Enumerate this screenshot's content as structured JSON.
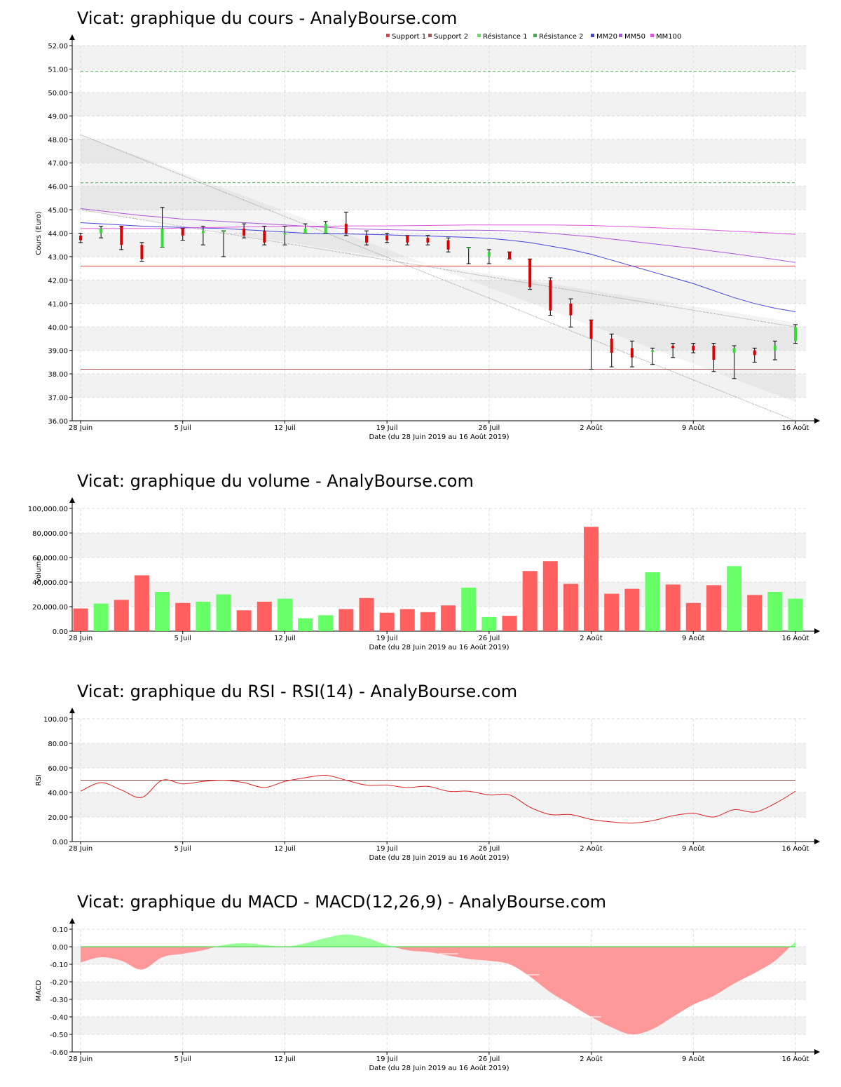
{
  "chart_data": [
    {
      "type": "candlestick",
      "title": "Vicat: graphique du cours - AnalyBourse.com",
      "ylabel": "Cours (Euro)",
      "xlabel": "Date (du 28 Juin 2019 au 16 Août 2019)",
      "ylim": [
        36,
        52
      ],
      "yticks": [
        "36.00",
        "37.00",
        "38.00",
        "39.00",
        "40.00",
        "41.00",
        "42.00",
        "43.00",
        "44.00",
        "45.00",
        "46.00",
        "47.00",
        "48.00",
        "49.00",
        "50.00",
        "51.00",
        "52.00"
      ],
      "xticks": [
        {
          "i": 0,
          "label": "28 Juin"
        },
        {
          "i": 5,
          "label": "5 Juil"
        },
        {
          "i": 10,
          "label": "12 Juil"
        },
        {
          "i": 15,
          "label": "19 Juil"
        },
        {
          "i": 20,
          "label": "26 Juil"
        },
        {
          "i": 25,
          "label": "2 Août"
        },
        {
          "i": 30,
          "label": "9 Août"
        },
        {
          "i": 35,
          "label": "16 Août"
        }
      ],
      "legend": [
        {
          "label": "Support 1",
          "color": "#dd4444"
        },
        {
          "label": "Support 2",
          "color": "#aa5555"
        },
        {
          "label": "Résistance 1",
          "color": "#66dd66"
        },
        {
          "label": "Résistance 2",
          "color": "#44aa44"
        },
        {
          "label": "MM20",
          "color": "#4444dd"
        },
        {
          "label": "MM50",
          "color": "#aa55dd"
        },
        {
          "label": "MM100",
          "color": "#dd55dd"
        }
      ],
      "support_1": 42.6,
      "support_2": 38.2,
      "resistance_1": 46.15,
      "resistance_2": 50.9,
      "ohlc": [
        {
          "o": 43.9,
          "h": 44.0,
          "l": 43.6,
          "c": 43.7
        },
        {
          "o": 44.0,
          "h": 44.3,
          "l": 43.8,
          "c": 44.2
        },
        {
          "o": 44.3,
          "h": 44.3,
          "l": 43.3,
          "c": 43.5
        },
        {
          "o": 43.5,
          "h": 43.6,
          "l": 42.8,
          "c": 42.9
        },
        {
          "o": 43.4,
          "h": 45.1,
          "l": 43.4,
          "c": 44.2
        },
        {
          "o": 44.2,
          "h": 44.2,
          "l": 43.7,
          "c": 43.9
        },
        {
          "o": 44.0,
          "h": 44.3,
          "l": 43.5,
          "c": 44.1
        },
        {
          "o": 44.1,
          "h": 44.1,
          "l": 43.0,
          "c": 44.1
        },
        {
          "o": 44.2,
          "h": 44.4,
          "l": 43.8,
          "c": 43.9
        },
        {
          "o": 44.1,
          "h": 44.3,
          "l": 43.5,
          "c": 43.6
        },
        {
          "o": 44.0,
          "h": 44.3,
          "l": 43.5,
          "c": 44.0
        },
        {
          "o": 44.0,
          "h": 44.4,
          "l": 44.0,
          "c": 44.2
        },
        {
          "o": 44.0,
          "h": 44.5,
          "l": 44.0,
          "c": 44.4
        },
        {
          "o": 44.4,
          "h": 44.9,
          "l": 43.9,
          "c": 44.0
        },
        {
          "o": 43.9,
          "h": 44.1,
          "l": 43.5,
          "c": 43.6
        },
        {
          "o": 43.9,
          "h": 44.0,
          "l": 43.6,
          "c": 43.7
        },
        {
          "o": 43.9,
          "h": 43.9,
          "l": 43.5,
          "c": 43.6
        },
        {
          "o": 43.8,
          "h": 43.9,
          "l": 43.5,
          "c": 43.6
        },
        {
          "o": 43.7,
          "h": 43.8,
          "l": 43.2,
          "c": 43.3
        },
        {
          "o": 43.4,
          "h": 43.4,
          "l": 42.7,
          "c": 43.4
        },
        {
          "o": 43.0,
          "h": 43.3,
          "l": 42.7,
          "c": 43.2
        },
        {
          "o": 43.2,
          "h": 43.2,
          "l": 42.9,
          "c": 42.9
        },
        {
          "o": 42.9,
          "h": 42.9,
          "l": 41.6,
          "c": 41.7
        },
        {
          "o": 42.0,
          "h": 42.1,
          "l": 40.5,
          "c": 40.7
        },
        {
          "o": 41.0,
          "h": 41.2,
          "l": 40.0,
          "c": 40.5
        },
        {
          "o": 40.3,
          "h": 40.3,
          "l": 38.2,
          "c": 39.5
        },
        {
          "o": 39.5,
          "h": 39.7,
          "l": 38.3,
          "c": 38.9
        },
        {
          "o": 39.1,
          "h": 39.4,
          "l": 38.3,
          "c": 38.7
        },
        {
          "o": 39.0,
          "h": 39.1,
          "l": 38.4,
          "c": 39.0
        },
        {
          "o": 39.2,
          "h": 39.3,
          "l": 38.7,
          "c": 39.1
        },
        {
          "o": 39.2,
          "h": 39.3,
          "l": 38.9,
          "c": 39.0
        },
        {
          "o": 39.2,
          "h": 39.3,
          "l": 38.1,
          "c": 38.6
        },
        {
          "o": 38.9,
          "h": 39.2,
          "l": 37.8,
          "c": 39.1
        },
        {
          "o": 39.0,
          "h": 39.1,
          "l": 38.5,
          "c": 38.8
        },
        {
          "o": 39.0,
          "h": 39.4,
          "l": 38.6,
          "c": 39.2
        },
        {
          "o": 39.4,
          "h": 40.1,
          "l": 39.3,
          "c": 40.0
        }
      ],
      "mm20": [
        44.45,
        44.4,
        44.35,
        44.3,
        44.27,
        44.25,
        44.22,
        44.2,
        44.15,
        44.1,
        44.05,
        44.0,
        43.98,
        43.97,
        43.95,
        43.93,
        43.9,
        43.88,
        43.85,
        43.82,
        43.78,
        43.7,
        43.6,
        43.45,
        43.3,
        43.1,
        42.85,
        42.6,
        42.35,
        42.1,
        41.85,
        41.55,
        41.25,
        41.0,
        40.8,
        40.65
      ],
      "mm50": [
        45.05,
        44.95,
        44.85,
        44.75,
        44.68,
        44.6,
        44.55,
        44.5,
        44.45,
        44.4,
        44.35,
        44.3,
        44.25,
        44.2,
        44.17,
        44.15,
        44.13,
        44.12,
        44.12,
        44.13,
        44.12,
        44.1,
        44.05,
        44.0,
        43.92,
        43.85,
        43.75,
        43.65,
        43.55,
        43.45,
        43.35,
        43.23,
        43.12,
        43.0,
        42.88,
        42.75
      ],
      "mm100": [
        44.2,
        44.2,
        44.2,
        44.2,
        44.2,
        44.22,
        44.24,
        44.25,
        44.27,
        44.28,
        44.29,
        44.3,
        44.3,
        44.31,
        44.31,
        44.31,
        44.32,
        44.33,
        44.34,
        44.35,
        44.35,
        44.35,
        44.35,
        44.35,
        44.34,
        44.33,
        44.3,
        44.27,
        44.24,
        44.2,
        44.17,
        44.13,
        44.08,
        44.04,
        44.0,
        43.95
      ],
      "channel_upper": [
        48.2,
        36.0
      ],
      "channel_lower": [
        45.0,
        36.8
      ]
    },
    {
      "type": "bar",
      "title": "Vicat: graphique du volume - AnalyBourse.com",
      "ylabel": "Volume",
      "xlabel": "Date (du 28 Juin 2019 au 16 Août 2019)",
      "ylim": [
        0,
        100000
      ],
      "yticks": [
        "0.00",
        "20,000.00",
        "40,000.00",
        "60,000.00",
        "80,000.00",
        "100,000.00"
      ],
      "xticks": [
        {
          "i": 0,
          "label": "28 Juin"
        },
        {
          "i": 5,
          "label": "5 Juil"
        },
        {
          "i": 10,
          "label": "12 Juil"
        },
        {
          "i": 15,
          "label": "19 Juil"
        },
        {
          "i": 20,
          "label": "26 Juil"
        },
        {
          "i": 25,
          "label": "2 Août"
        },
        {
          "i": 30,
          "label": "9 Août"
        },
        {
          "i": 35,
          "label": "16 Août"
        }
      ],
      "values": [
        18500,
        22500,
        25500,
        45500,
        32000,
        23000,
        24000,
        30000,
        17000,
        24000,
        26500,
        10500,
        13000,
        18000,
        27000,
        15000,
        18000,
        15500,
        21000,
        35500,
        11500,
        12500,
        49000,
        57000,
        38500,
        85000,
        30500,
        34500,
        48000,
        38000,
        23000,
        37500,
        53000,
        29500,
        32000,
        26500
      ],
      "up": [
        false,
        true,
        false,
        false,
        true,
        false,
        true,
        true,
        false,
        false,
        true,
        true,
        true,
        false,
        false,
        false,
        false,
        false,
        false,
        true,
        true,
        false,
        false,
        false,
        false,
        false,
        false,
        false,
        true,
        false,
        false,
        false,
        true,
        false,
        true,
        true
      ]
    },
    {
      "type": "line",
      "title": "Vicat: graphique du RSI - RSI(14) - AnalyBourse.com",
      "ylabel": "RSI",
      "xlabel": "Date (du 28 Juin 2019 au 16 Août 2019)",
      "ylim": [
        0,
        100
      ],
      "yticks": [
        "0.00",
        "20.00",
        "40.00",
        "60.00",
        "80.00",
        "100.00"
      ],
      "xticks": [
        {
          "i": 0,
          "label": "28 Juin"
        },
        {
          "i": 5,
          "label": "5 Juil"
        },
        {
          "i": 10,
          "label": "12 Juil"
        },
        {
          "i": 15,
          "label": "19 Juil"
        },
        {
          "i": 20,
          "label": "26 Juil"
        },
        {
          "i": 25,
          "label": "2 Août"
        },
        {
          "i": 30,
          "label": "9 Août"
        },
        {
          "i": 35,
          "label": "16 Août"
        }
      ],
      "reference": 50,
      "values": [
        41,
        48,
        42,
        36,
        50,
        47,
        49,
        50,
        48,
        44,
        49,
        52,
        54,
        50,
        46,
        46,
        44,
        45,
        41,
        41,
        38,
        38,
        28,
        22,
        22,
        18,
        16,
        15,
        17,
        21,
        23,
        20,
        26,
        24,
        31,
        41
      ]
    },
    {
      "type": "area",
      "title": "Vicat: graphique du MACD - MACD(12,26,9) - AnalyBourse.com",
      "ylabel": "MACD",
      "xlabel": "Date (du 28 Juin 2019 au 16 Août 2019)",
      "ylim": [
        -0.6,
        0.1
      ],
      "yticks": [
        "-0.60",
        "-0.50",
        "-0.40",
        "-0.30",
        "-0.20",
        "-0.10",
        "0.00",
        "0.10"
      ],
      "xticks": [
        {
          "i": 0,
          "label": "28 Juin"
        },
        {
          "i": 5,
          "label": "5 Juil"
        },
        {
          "i": 10,
          "label": "12 Juil"
        },
        {
          "i": 15,
          "label": "19 Juil"
        },
        {
          "i": 20,
          "label": "26 Juil"
        },
        {
          "i": 25,
          "label": "2 Août"
        },
        {
          "i": 30,
          "label": "9 Août"
        },
        {
          "i": 35,
          "label": "16 Août"
        }
      ],
      "values": [
        -0.09,
        -0.06,
        -0.08,
        -0.13,
        -0.06,
        -0.04,
        -0.02,
        0.01,
        0.02,
        0.01,
        0.0,
        0.02,
        0.05,
        0.07,
        0.05,
        0.01,
        -0.02,
        -0.03,
        -0.05,
        -0.07,
        -0.08,
        -0.1,
        -0.17,
        -0.26,
        -0.33,
        -0.4,
        -0.46,
        -0.5,
        -0.47,
        -0.4,
        -0.33,
        -0.28,
        -0.21,
        -0.15,
        -0.08,
        0.03
      ],
      "signal": [
        -0.0,
        -0.0,
        0.0,
        0.0,
        0.0,
        0.0,
        0.0,
        0.0,
        0.0,
        0.0,
        0.0,
        0.0,
        0.0,
        0.0,
        0.0,
        0.0,
        -0.01,
        -0.02,
        -0.04,
        -0.05,
        -0.06,
        -0.08,
        -0.16,
        -0.2,
        -0.26,
        -0.4,
        -0.42,
        -0.43,
        -0.42,
        -0.38,
        -0.33,
        -0.27,
        -0.2,
        -0.14,
        -0.07,
        0.0
      ]
    }
  ],
  "colors": {
    "up": "#66ff66",
    "down": "#ff5f5f",
    "candle_up": "#33dd33",
    "candle_down": "#dd0000",
    "band": "#f2f2f2",
    "grid": "#dcdcdc"
  }
}
